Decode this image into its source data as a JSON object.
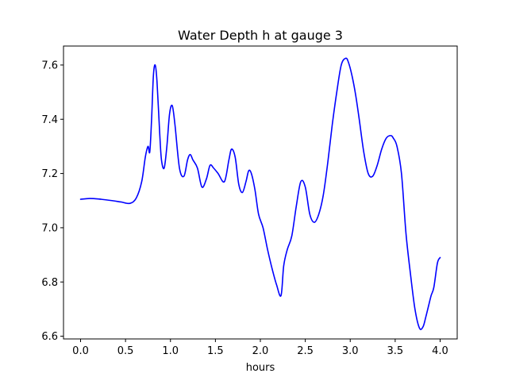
{
  "chart_data": {
    "type": "line",
    "title": "Water Depth h at gauge 3",
    "xlabel": "hours",
    "ylabel": "",
    "xlim": [
      -0.19,
      4.19
    ],
    "ylim": [
      6.59,
      7.67
    ],
    "xticks": [
      0.0,
      0.5,
      1.0,
      1.5,
      2.0,
      2.5,
      3.0,
      3.5,
      4.0
    ],
    "xtick_labels": [
      "0.0",
      "0.5",
      "1.0",
      "1.5",
      "2.0",
      "2.5",
      "3.0",
      "3.5",
      "4.0"
    ],
    "yticks": [
      6.6,
      6.8,
      7.0,
      7.2,
      7.4,
      7.6
    ],
    "ytick_labels": [
      "6.6",
      "6.8",
      "7.0",
      "7.2",
      "7.4",
      "7.6"
    ],
    "grid": false,
    "legend": "none",
    "series": [
      {
        "color": "#0000ff",
        "x": [
          0.0,
          0.1,
          0.2,
          0.35,
          0.45,
          0.55,
          0.62,
          0.68,
          0.72,
          0.75,
          0.77,
          0.79,
          0.81,
          0.83,
          0.85,
          0.88,
          0.9,
          0.93,
          0.96,
          0.99,
          1.02,
          1.05,
          1.1,
          1.15,
          1.19,
          1.22,
          1.25,
          1.3,
          1.35,
          1.4,
          1.44,
          1.48,
          1.53,
          1.6,
          1.65,
          1.68,
          1.72,
          1.76,
          1.8,
          1.84,
          1.87,
          1.9,
          1.94,
          1.98,
          2.03,
          2.08,
          2.13,
          2.18,
          2.23,
          2.26,
          2.3,
          2.35,
          2.4,
          2.45,
          2.5,
          2.55,
          2.6,
          2.65,
          2.7,
          2.75,
          2.8,
          2.85,
          2.9,
          2.95,
          2.98,
          3.02,
          3.06,
          3.1,
          3.15,
          3.2,
          3.25,
          3.3,
          3.35,
          3.4,
          3.45,
          3.48,
          3.52,
          3.57,
          3.62,
          3.67,
          3.72,
          3.77,
          3.81,
          3.84,
          3.87,
          3.9,
          3.93,
          3.97,
          4.0
        ],
        "y": [
          7.105,
          7.108,
          7.106,
          7.1,
          7.095,
          7.09,
          7.11,
          7.17,
          7.26,
          7.3,
          7.28,
          7.4,
          7.56,
          7.6,
          7.54,
          7.35,
          7.25,
          7.22,
          7.3,
          7.42,
          7.45,
          7.38,
          7.22,
          7.19,
          7.25,
          7.27,
          7.25,
          7.22,
          7.15,
          7.18,
          7.23,
          7.22,
          7.2,
          7.17,
          7.25,
          7.29,
          7.26,
          7.16,
          7.13,
          7.17,
          7.21,
          7.2,
          7.14,
          7.05,
          7.0,
          6.92,
          6.85,
          6.79,
          6.75,
          6.86,
          6.92,
          6.97,
          7.08,
          7.17,
          7.15,
          7.05,
          7.02,
          7.05,
          7.12,
          7.24,
          7.38,
          7.5,
          7.6,
          7.625,
          7.61,
          7.56,
          7.49,
          7.4,
          7.28,
          7.2,
          7.19,
          7.23,
          7.29,
          7.33,
          7.34,
          7.33,
          7.3,
          7.2,
          6.98,
          6.83,
          6.7,
          6.63,
          6.635,
          6.67,
          6.71,
          6.75,
          6.78,
          6.87,
          6.89
        ]
      }
    ]
  }
}
